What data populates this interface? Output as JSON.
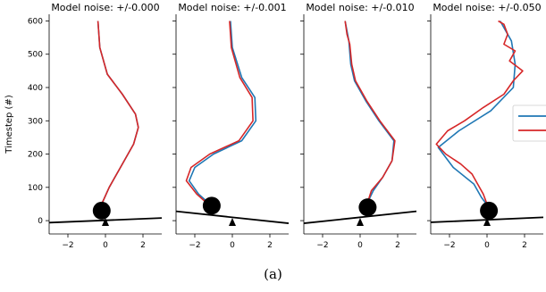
{
  "caption": "(a)",
  "legend_present": true,
  "colors": {
    "true_traj": "#1f77b4",
    "model_traj": "#d62728",
    "cart": "#000000"
  },
  "chart_data": {
    "type": "line",
    "ylabel": "Timestep (#)",
    "y_ticks": [
      0,
      100,
      200,
      300,
      400,
      500,
      600
    ],
    "x_ticks": [
      "−2",
      "0",
      "2"
    ],
    "panels": [
      {
        "title": "Model noise: +/-0.000",
        "xlim": [
          -3,
          3
        ],
        "ylim": [
          -40,
          620
        ],
        "pole_line": [
          [
            -3,
            -6
          ],
          [
            3,
            8
          ]
        ],
        "pendulum_center": [
          -0.2,
          30
        ],
        "pivot_x": 0,
        "series": [
          {
            "color": "#1f77b4",
            "points": [
              [
                -0.4,
                600
              ],
              [
                -0.3,
                520
              ],
              [
                0.1,
                440
              ],
              [
                0.9,
                380
              ],
              [
                1.6,
                320
              ],
              [
                1.75,
                280
              ],
              [
                1.5,
                230
              ],
              [
                0.8,
                160
              ],
              [
                0.2,
                100
              ],
              [
                -0.2,
                50
              ]
            ]
          },
          {
            "color": "#d62728",
            "points": [
              [
                -0.4,
                600
              ],
              [
                -0.3,
                520
              ],
              [
                0.1,
                440
              ],
              [
                0.9,
                380
              ],
              [
                1.6,
                320
              ],
              [
                1.75,
                280
              ],
              [
                1.5,
                230
              ],
              [
                0.8,
                160
              ],
              [
                0.2,
                100
              ],
              [
                -0.2,
                50
              ]
            ]
          }
        ]
      },
      {
        "title": "Model noise: +/-0.001",
        "xlim": [
          -3,
          3
        ],
        "ylim": [
          -40,
          620
        ],
        "pole_line": [
          [
            -3,
            28
          ],
          [
            3,
            -8
          ]
        ],
        "pendulum_center": [
          -1.1,
          45
        ],
        "pivot_x": 0,
        "series": [
          {
            "color": "#1f77b4",
            "points": [
              [
                -0.1,
                600
              ],
              [
                0.0,
                520
              ],
              [
                0.5,
                430
              ],
              [
                1.2,
                370
              ],
              [
                1.25,
                300
              ],
              [
                0.5,
                240
              ],
              [
                -1.0,
                200
              ],
              [
                -2.0,
                160
              ],
              [
                -2.3,
                120
              ],
              [
                -1.8,
                80
              ],
              [
                -1.2,
                50
              ]
            ]
          },
          {
            "color": "#d62728",
            "points": [
              [
                -0.15,
                600
              ],
              [
                -0.05,
                520
              ],
              [
                0.4,
                430
              ],
              [
                1.05,
                370
              ],
              [
                1.1,
                300
              ],
              [
                0.35,
                240
              ],
              [
                -1.2,
                200
              ],
              [
                -2.2,
                160
              ],
              [
                -2.45,
                120
              ],
              [
                -1.9,
                80
              ],
              [
                -1.3,
                50
              ]
            ]
          }
        ]
      },
      {
        "title": "Model noise: +/-0.010",
        "xlim": [
          -3,
          3
        ],
        "ylim": [
          -40,
          620
        ],
        "pole_line": [
          [
            -3,
            -8
          ],
          [
            3,
            28
          ]
        ],
        "pendulum_center": [
          0.4,
          40
        ],
        "pivot_x": 0,
        "series": [
          {
            "color": "#1f77b4",
            "points": [
              [
                -0.8,
                600
              ],
              [
                -0.6,
                540
              ],
              [
                -0.5,
                470
              ],
              [
                -0.3,
                420
              ],
              [
                0.3,
                360
              ],
              [
                1.0,
                300
              ],
              [
                1.8,
                240
              ],
              [
                1.7,
                180
              ],
              [
                1.2,
                130
              ],
              [
                0.7,
                90
              ],
              [
                0.4,
                55
              ]
            ]
          },
          {
            "color": "#d62728",
            "points": [
              [
                -0.8,
                600
              ],
              [
                -0.7,
                560
              ],
              [
                -0.55,
                530
              ],
              [
                -0.45,
                470
              ],
              [
                -0.25,
                420
              ],
              [
                0.35,
                360
              ],
              [
                1.05,
                300
              ],
              [
                1.85,
                240
              ],
              [
                1.7,
                180
              ],
              [
                1.2,
                130
              ],
              [
                0.6,
                90
              ],
              [
                0.4,
                55
              ]
            ]
          }
        ]
      },
      {
        "title": "Model noise: +/-0.050",
        "xlim": [
          -3,
          3
        ],
        "ylim": [
          -40,
          620
        ],
        "pole_line": [
          [
            -3,
            -5
          ],
          [
            3,
            10
          ]
        ],
        "pendulum_center": [
          0.1,
          30
        ],
        "pivot_x": 0,
        "series": [
          {
            "color": "#1f77b4",
            "points": [
              [
                0.7,
                600
              ],
              [
                1.3,
                540
              ],
              [
                1.5,
                470
              ],
              [
                1.4,
                400
              ],
              [
                0.2,
                330
              ],
              [
                -1.5,
                270
              ],
              [
                -2.6,
                220
              ],
              [
                -1.8,
                160
              ],
              [
                -0.7,
                110
              ],
              [
                -0.3,
                70
              ],
              [
                0.1,
                40
              ]
            ]
          },
          {
            "color": "#d62728",
            "points": [
              [
                0.6,
                600
              ],
              [
                0.9,
                590
              ],
              [
                1.1,
                560
              ],
              [
                0.9,
                530
              ],
              [
                1.5,
                510
              ],
              [
                1.2,
                480
              ],
              [
                1.9,
                450
              ],
              [
                1.4,
                420
              ],
              [
                0.9,
                380
              ],
              [
                -0.2,
                340
              ],
              [
                -1.2,
                300
              ],
              [
                -2.1,
                270
              ],
              [
                -2.7,
                230
              ],
              [
                -2.2,
                200
              ],
              [
                -1.4,
                170
              ],
              [
                -0.8,
                140
              ],
              [
                -0.5,
                110
              ],
              [
                -0.2,
                80
              ],
              [
                0.0,
                50
              ]
            ]
          }
        ]
      }
    ]
  }
}
